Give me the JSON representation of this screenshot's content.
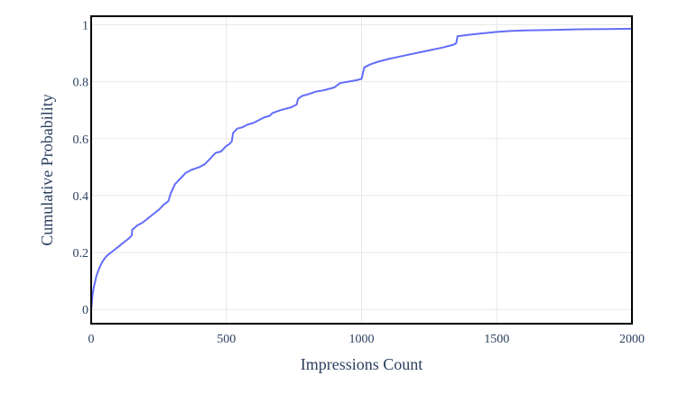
{
  "chart_data": {
    "type": "line",
    "xlabel": "Impressions Count",
    "ylabel": "Cumulative Probability",
    "xlim": [
      0,
      2000
    ],
    "ylim": [
      -0.05,
      1.03
    ],
    "x_ticks": [
      0,
      500,
      1000,
      1500,
      2000
    ],
    "x_tick_labels": [
      "0",
      "500",
      "1000",
      "1500",
      "2000"
    ],
    "y_ticks": [
      0,
      0.2,
      0.4,
      0.6,
      0.8,
      1
    ],
    "y_tick_labels": [
      "0",
      "0.2",
      "0.4",
      "0.6",
      "0.8",
      "1"
    ],
    "grid": true,
    "legend": "none",
    "colors": {
      "series": "#636efa",
      "axis_frame": "#000000",
      "grid": "#e8e8e8",
      "text": "#2a3f5f"
    },
    "series": [
      {
        "x": [
          0,
          5,
          10,
          20,
          30,
          40,
          50,
          60,
          80,
          100,
          120,
          140,
          150,
          152,
          170,
          190,
          210,
          230,
          250,
          270,
          285,
          290,
          295,
          310,
          330,
          350,
          370,
          400,
          420,
          440,
          450,
          460,
          480,
          500,
          510,
          520,
          525,
          540,
          560,
          580,
          600,
          620,
          640,
          660,
          670,
          700,
          740,
          760,
          765,
          780,
          800,
          830,
          860,
          880,
          900,
          920,
          950,
          980,
          1000,
          1005,
          1010,
          1030,
          1060,
          1100,
          1150,
          1200,
          1250,
          1300,
          1340,
          1350,
          1355,
          1400,
          1450,
          1500,
          1550,
          1600,
          1700,
          1800,
          1900,
          2000
        ],
        "y": [
          0.0,
          0.05,
          0.08,
          0.12,
          0.145,
          0.165,
          0.18,
          0.19,
          0.205,
          0.22,
          0.235,
          0.25,
          0.26,
          0.28,
          0.295,
          0.305,
          0.32,
          0.335,
          0.35,
          0.37,
          0.38,
          0.395,
          0.41,
          0.44,
          0.46,
          0.48,
          0.49,
          0.5,
          0.51,
          0.53,
          0.54,
          0.55,
          0.555,
          0.575,
          0.58,
          0.59,
          0.62,
          0.635,
          0.64,
          0.65,
          0.655,
          0.665,
          0.675,
          0.68,
          0.69,
          0.7,
          0.71,
          0.72,
          0.74,
          0.75,
          0.755,
          0.765,
          0.77,
          0.775,
          0.78,
          0.795,
          0.8,
          0.805,
          0.81,
          0.83,
          0.85,
          0.86,
          0.87,
          0.88,
          0.89,
          0.9,
          0.91,
          0.92,
          0.93,
          0.935,
          0.96,
          0.965,
          0.97,
          0.975,
          0.978,
          0.98,
          0.982,
          0.984,
          0.985,
          0.986
        ]
      }
    ]
  }
}
